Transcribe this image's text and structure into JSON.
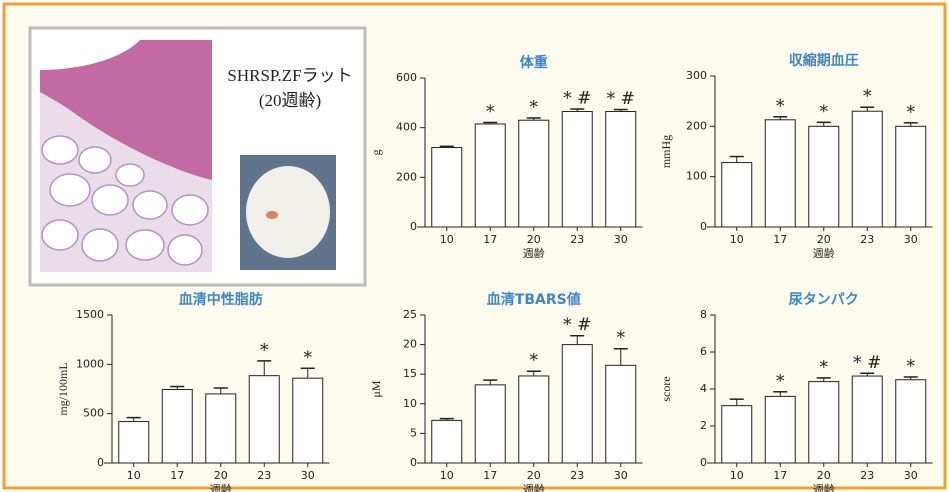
{
  "panel": {
    "caption": [
      "SHRSP.ZFラット",
      "(20週齢)"
    ]
  },
  "chart_data": [
    {
      "type": "bar",
      "title": "体重",
      "categories": [
        "10",
        "17",
        "20",
        "23",
        "30"
      ],
      "values": [
        320,
        415,
        430,
        465,
        465
      ],
      "errors": [
        5,
        6,
        9,
        10,
        8
      ],
      "annotations": [
        null,
        "*",
        "*",
        "* #",
        "* #"
      ],
      "ylabel": "g",
      "xlabel": "週齢",
      "ylim": [
        0,
        600
      ],
      "yticks": [
        0,
        200,
        400,
        600
      ],
      "color": "#ffffff"
    },
    {
      "type": "bar",
      "title": "収縮期血圧",
      "categories": [
        "10",
        "17",
        "20",
        "23",
        "30"
      ],
      "values": [
        128,
        213,
        200,
        230,
        200
      ],
      "errors": [
        12,
        6,
        8,
        8,
        7
      ],
      "annotations": [
        null,
        "*",
        "*",
        "*",
        "*"
      ],
      "ylabel": "mmHg",
      "xlabel": "週齢",
      "ylim": [
        0,
        300
      ],
      "yticks": [
        0,
        100,
        200,
        300
      ],
      "color": "#ffffff"
    },
    {
      "type": "bar",
      "title": "血清中性脂肪",
      "categories": [
        "10",
        "17",
        "20",
        "23",
        "30"
      ],
      "values": [
        420,
        745,
        700,
        885,
        860
      ],
      "errors": [
        40,
        30,
        60,
        150,
        100
      ],
      "annotations": [
        null,
        null,
        null,
        "*",
        "*"
      ],
      "ylabel": "mg/100mL",
      "xlabel": "週齢",
      "ylim": [
        0,
        1500
      ],
      "yticks": [
        0,
        500,
        1000,
        1500
      ],
      "color": "#ffffff"
    },
    {
      "type": "bar",
      "title": "血清TBARS値",
      "categories": [
        "10",
        "17",
        "20",
        "23",
        "30"
      ],
      "values": [
        7.2,
        13.2,
        14.7,
        20,
        16.5
      ],
      "errors": [
        0.3,
        0.8,
        0.8,
        1.5,
        2.8
      ],
      "annotations": [
        null,
        null,
        "*",
        "* #",
        "*"
      ],
      "ylabel": "μM",
      "xlabel": "週齢",
      "ylim": [
        0,
        25
      ],
      "yticks": [
        0,
        5,
        10,
        15,
        20,
        25
      ],
      "color": "#ffffff"
    },
    {
      "type": "bar",
      "title": "尿タンパク",
      "categories": [
        "10",
        "17",
        "20",
        "23",
        "30"
      ],
      "values": [
        3.1,
        3.6,
        4.4,
        4.7,
        4.5
      ],
      "errors": [
        0.35,
        0.25,
        0.2,
        0.15,
        0.15
      ],
      "annotations": [
        null,
        "*",
        "*",
        "* #",
        "*"
      ],
      "ylabel": "score",
      "xlabel": "週齢",
      "ylim": [
        0,
        8
      ],
      "yticks": [
        0,
        2,
        4,
        6,
        8
      ],
      "color": "#ffffff"
    }
  ]
}
